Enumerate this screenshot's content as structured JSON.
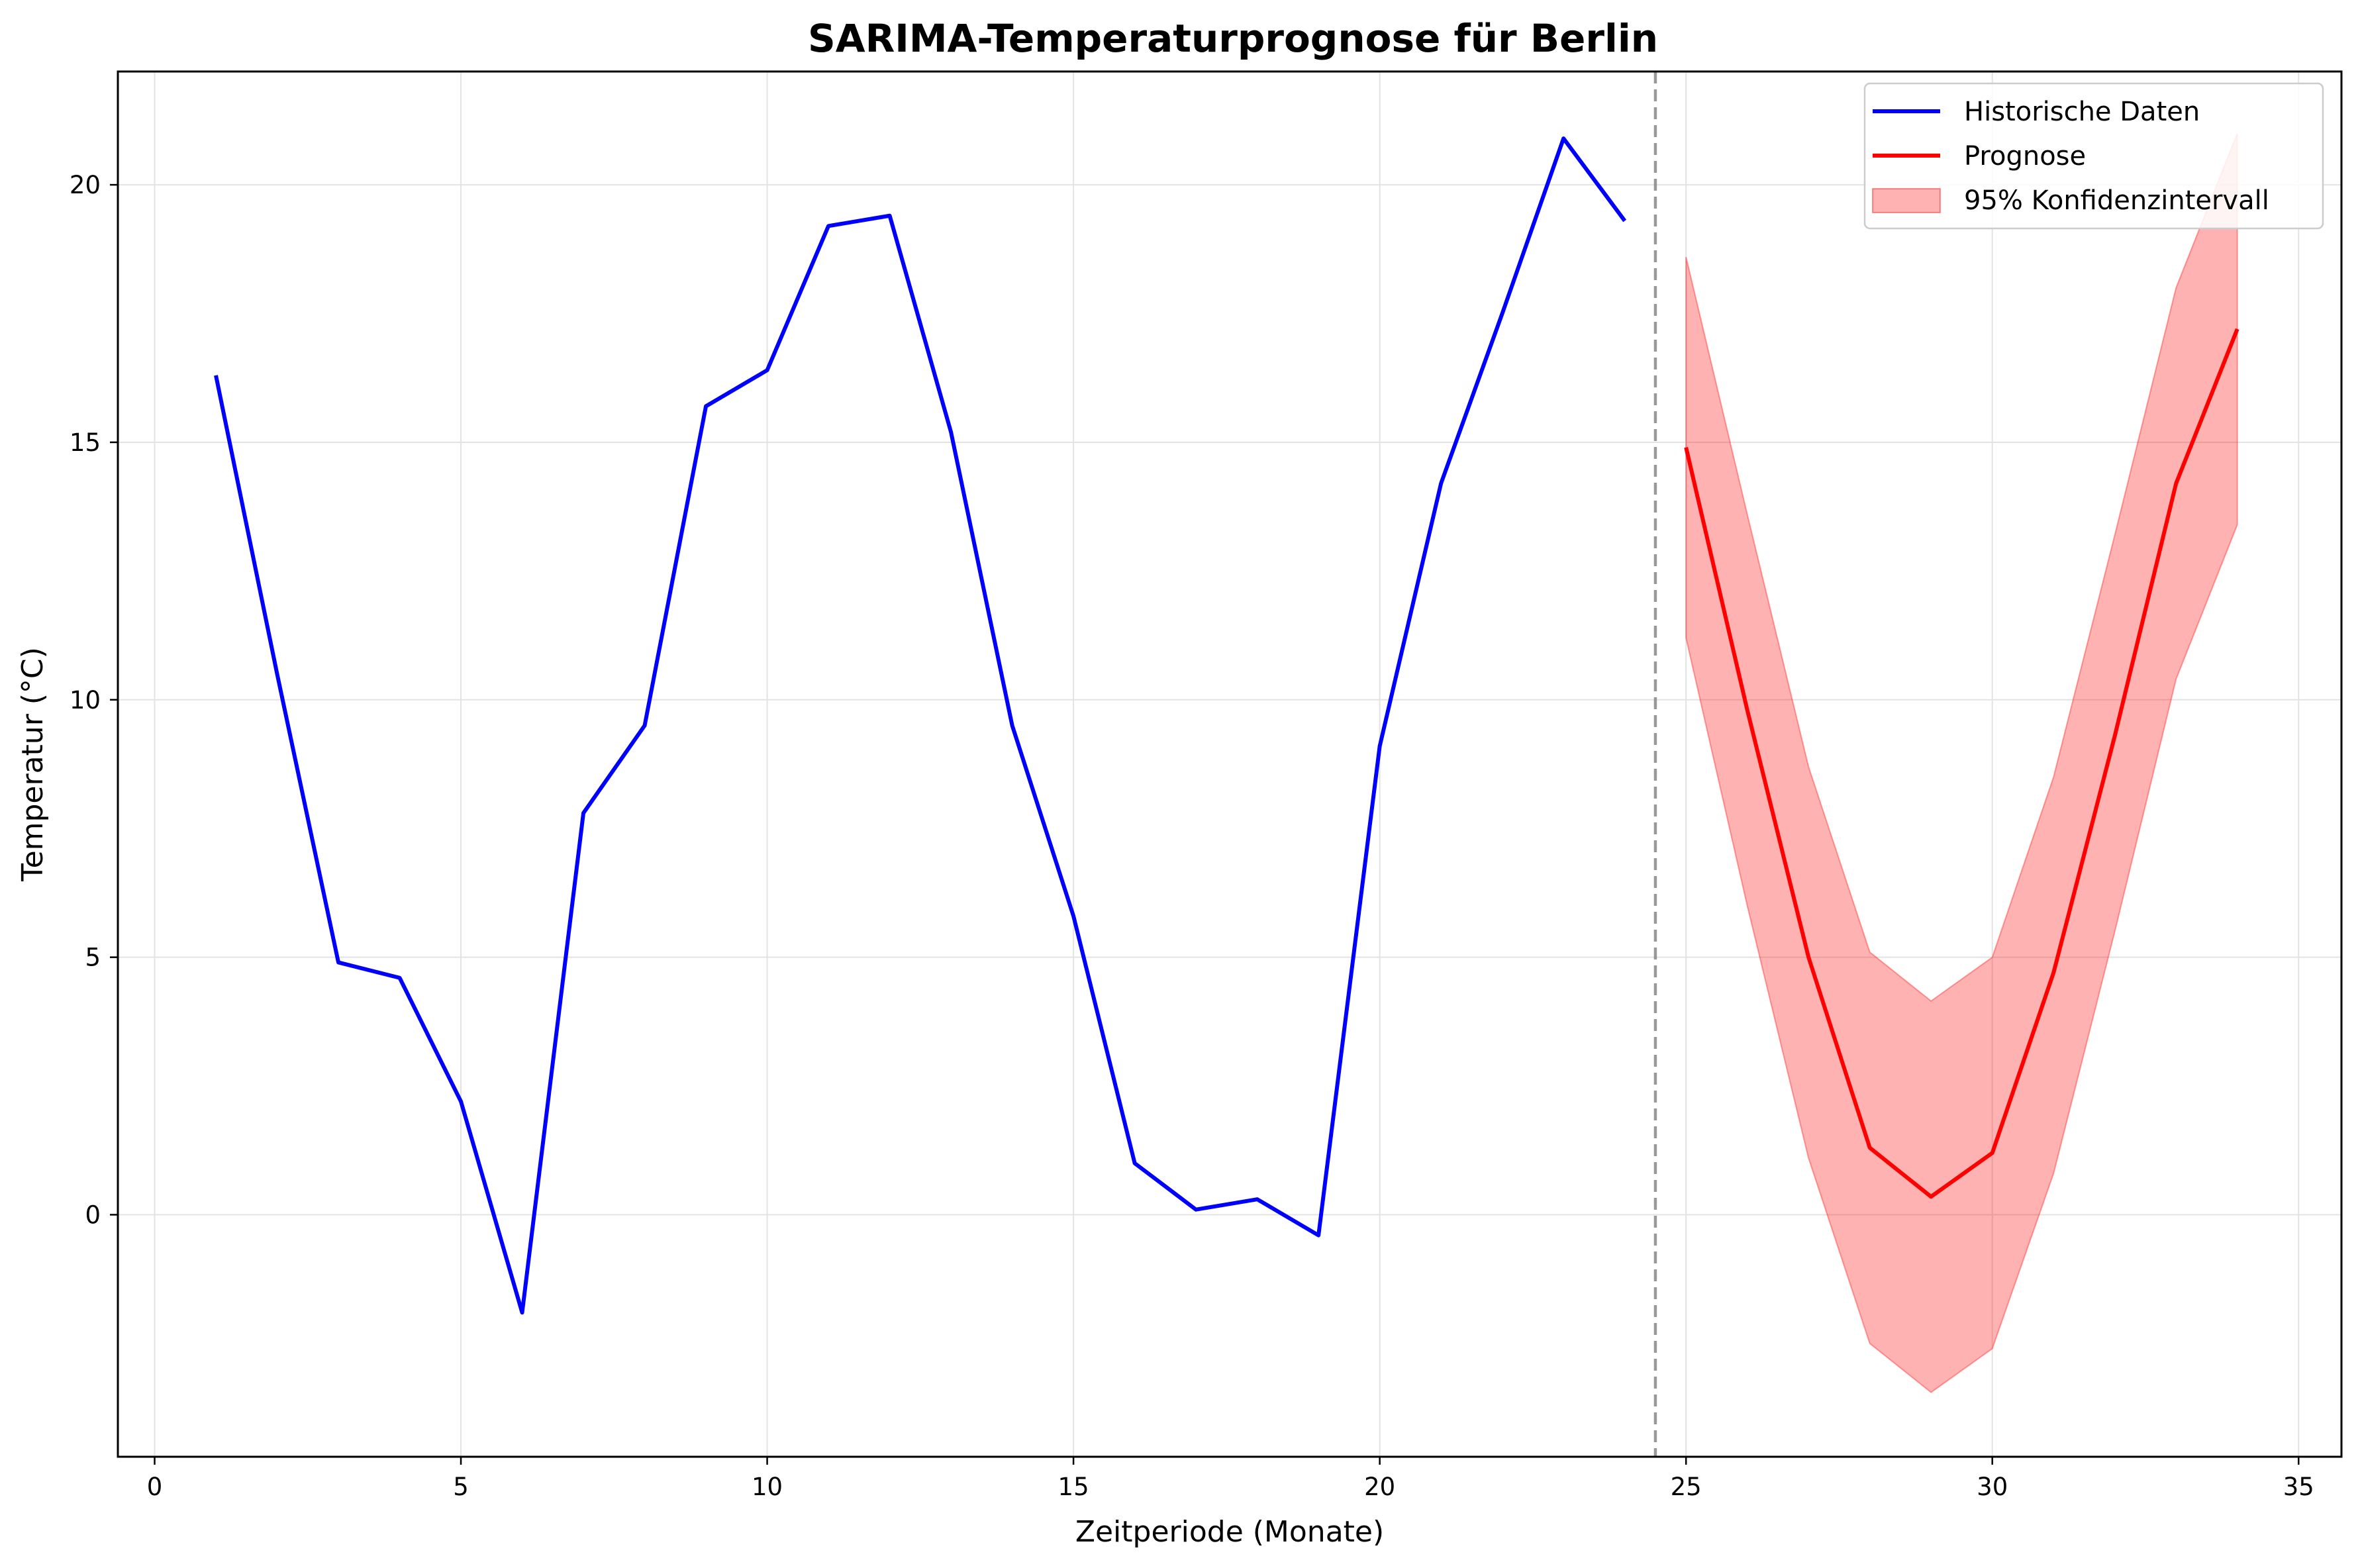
{
  "chart_data": {
    "type": "line",
    "title": "SARIMA-Temperaturprognose für Berlin",
    "xlabel": "Zeitperiode (Monate)",
    "ylabel": "Temperatur (°C)",
    "xlim": [
      -0.6,
      35.7
    ],
    "ylim": [
      -4.7,
      22.2
    ],
    "xticks": [
      0,
      5,
      10,
      15,
      20,
      25,
      30,
      35
    ],
    "yticks": [
      0,
      5,
      10,
      15,
      20
    ],
    "grid": true,
    "legend_position": "top-right",
    "split_x": 24.5,
    "series": [
      {
        "name": "Historische Daten",
        "color": "#0000ff",
        "x": [
          1,
          2,
          3,
          4,
          5,
          6,
          7,
          8,
          9,
          10,
          11,
          12,
          13,
          14,
          15,
          16,
          17,
          18,
          19,
          20,
          21,
          22,
          23,
          24
        ],
        "y": [
          16.3,
          10.5,
          4.9,
          4.6,
          2.2,
          -1.9,
          7.8,
          9.5,
          15.7,
          16.4,
          19.2,
          19.4,
          15.2,
          9.5,
          5.8,
          1.0,
          0.1,
          0.3,
          -0.4,
          9.1,
          14.2,
          17.5,
          20.9,
          19.3
        ]
      },
      {
        "name": "Prognose",
        "color": "#ff0000",
        "x": [
          25,
          26,
          27,
          28,
          29,
          30,
          31,
          32,
          33,
          34
        ],
        "y": [
          14.9,
          9.8,
          5.0,
          1.3,
          0.35,
          1.2,
          4.7,
          9.3,
          14.2,
          17.2
        ]
      }
    ],
    "confidence_interval": {
      "name": "95% Konfidenzintervall",
      "color": "#ff0000",
      "x": [
        25,
        26,
        27,
        28,
        29,
        30,
        31,
        32,
        33,
        34
      ],
      "lower": [
        11.2,
        6.0,
        1.1,
        -2.5,
        -3.45,
        -2.6,
        0.8,
        5.5,
        10.4,
        13.4
      ],
      "upper": [
        18.6,
        13.6,
        8.7,
        5.1,
        4.15,
        5.0,
        8.5,
        13.2,
        18.0,
        21.0
      ]
    }
  }
}
